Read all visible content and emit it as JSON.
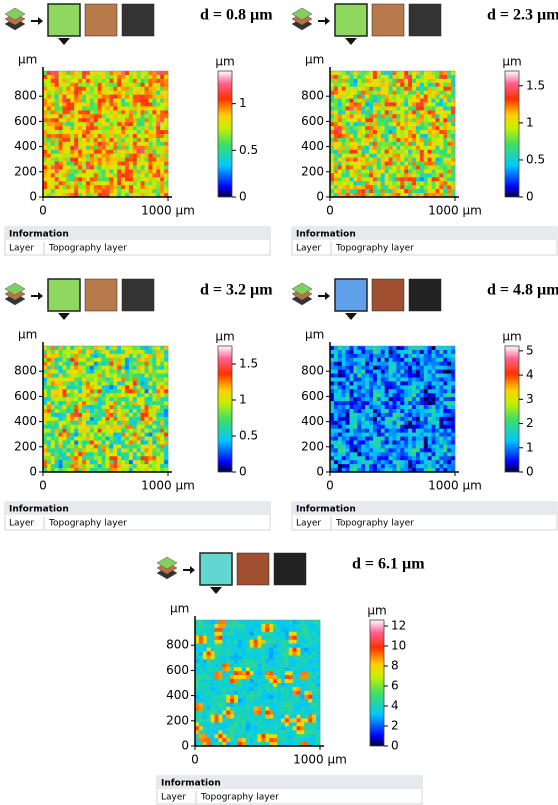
{
  "chart_data": [
    {
      "type": "heatmap",
      "title": "d = 0.8 µm",
      "y_unit": "µm",
      "xlim": [
        0,
        1000
      ],
      "ylim": [
        0,
        1000
      ],
      "xticks": [
        0,
        {
          "value": 1000,
          "label": "1000 µm"
        }
      ],
      "yticks": [
        0,
        200,
        400,
        600,
        800
      ],
      "colorbar": {
        "unit": "µm",
        "lim": [
          0,
          1.35
        ],
        "ticks": [
          0,
          0.5,
          1
        ]
      },
      "info": {
        "title": "Information",
        "rows": [
          [
            "Layer",
            "Topography layer"
          ]
        ]
      }
    },
    {
      "type": "heatmap",
      "title": "d = 2.3 µm",
      "y_unit": "µm",
      "xlim": [
        0,
        1000
      ],
      "ylim": [
        0,
        1000
      ],
      "xticks": [
        0,
        {
          "value": 1000,
          "label": "1000 µm"
        }
      ],
      "yticks": [
        0,
        200,
        400,
        600,
        800
      ],
      "colorbar": {
        "unit": "µm",
        "lim": [
          0,
          1.7
        ],
        "ticks": [
          0,
          0.5,
          1,
          1.5
        ]
      },
      "info": {
        "title": "Information",
        "rows": [
          [
            "Layer",
            "Topography layer"
          ]
        ]
      }
    },
    {
      "type": "heatmap",
      "title": "d = 3.2 µm",
      "y_unit": "µm",
      "xlim": [
        0,
        1000
      ],
      "ylim": [
        0,
        1000
      ],
      "xticks": [
        0,
        {
          "value": 1000,
          "label": "1000 µm"
        }
      ],
      "yticks": [
        0,
        200,
        400,
        600,
        800
      ],
      "colorbar": {
        "unit": "µm",
        "lim": [
          0,
          1.75
        ],
        "ticks": [
          0,
          0.5,
          1,
          1.5
        ]
      },
      "info": {
        "title": "Information",
        "rows": [
          [
            "Layer",
            "Topography layer"
          ]
        ]
      }
    },
    {
      "type": "heatmap",
      "title": "d = 4.8 µm",
      "y_unit": "µm",
      "xlim": [
        0,
        1000
      ],
      "ylim": [
        0,
        1000
      ],
      "xticks": [
        0,
        {
          "value": 1000,
          "label": "1000 µm"
        }
      ],
      "yticks": [
        0,
        200,
        400,
        600,
        800
      ],
      "colorbar": {
        "unit": "µm",
        "lim": [
          0,
          5.2
        ],
        "ticks": [
          0,
          1,
          2,
          3,
          4,
          5
        ]
      },
      "info": {
        "title": "Information",
        "rows": [
          [
            "Layer",
            "Topography layer"
          ]
        ]
      }
    },
    {
      "type": "heatmap",
      "title": "d = 6.1 µm",
      "y_unit": "µm",
      "xlim": [
        0,
        1000
      ],
      "ylim": [
        0,
        1000
      ],
      "xticks": [
        0,
        {
          "value": 1000,
          "label": "1000 µm"
        }
      ],
      "yticks": [
        0,
        200,
        400,
        600,
        800
      ],
      "colorbar": {
        "unit": "µm",
        "lim": [
          0,
          12.6
        ],
        "ticks": [
          0,
          2,
          4,
          6,
          8,
          10,
          12
        ]
      },
      "info": {
        "title": "Information",
        "rows": [
          [
            "Layer",
            "Topography layer"
          ]
        ]
      }
    }
  ]
}
